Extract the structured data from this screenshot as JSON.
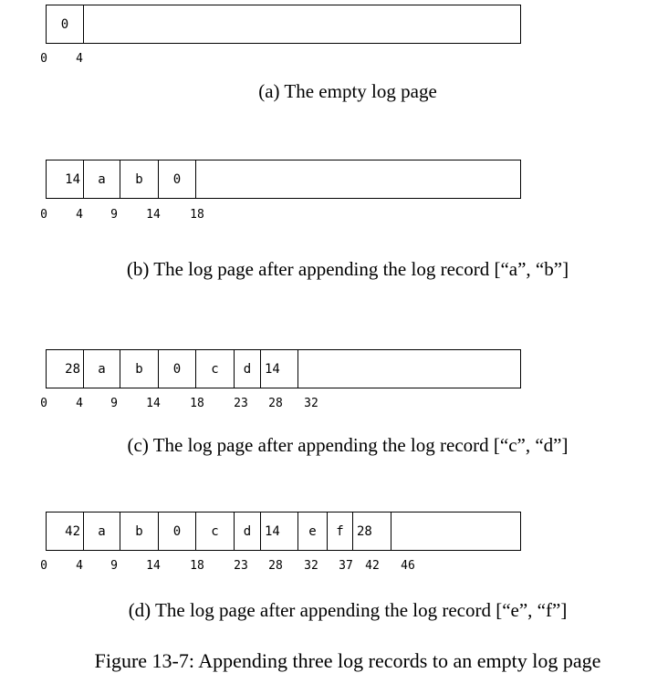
{
  "diagrams": [
    {
      "caption": "(a) The empty log page",
      "cells": [
        {
          "text": "0"
        },
        {
          "text": ""
        }
      ],
      "offsets": [
        "0",
        "4"
      ]
    },
    {
      "caption": "(b) The log page after appending the log record [“a”, “b”]",
      "cells": [
        {
          "text": "14"
        },
        {
          "text": "a"
        },
        {
          "text": "b"
        },
        {
          "text": "0"
        },
        {
          "text": ""
        }
      ],
      "offsets": [
        "0",
        "4",
        "9",
        "14",
        "18"
      ]
    },
    {
      "caption": "(c) The log page after appending the log record [“c”, “d”]",
      "cells": [
        {
          "text": "28"
        },
        {
          "text": "a"
        },
        {
          "text": "b"
        },
        {
          "text": "0"
        },
        {
          "text": "c"
        },
        {
          "text": "d"
        },
        {
          "text": "14"
        },
        {
          "text": ""
        }
      ],
      "offsets": [
        "0",
        "4",
        "9",
        "14",
        "18",
        "23",
        "28",
        "32"
      ]
    },
    {
      "caption": "(d) The log page after appending the log record [“e”, “f”]",
      "cells": [
        {
          "text": "42"
        },
        {
          "text": "a"
        },
        {
          "text": "b"
        },
        {
          "text": "0"
        },
        {
          "text": "c"
        },
        {
          "text": "d"
        },
        {
          "text": "14"
        },
        {
          "text": "e"
        },
        {
          "text": "f"
        },
        {
          "text": "28"
        },
        {
          "text": ""
        }
      ],
      "offsets": [
        "0",
        "4",
        "9",
        "14",
        "18",
        "23",
        "28",
        "32",
        "37",
        "42",
        "46"
      ]
    }
  ],
  "figure_caption": "Figure 13-7:  Appending three log records to an empty log page"
}
